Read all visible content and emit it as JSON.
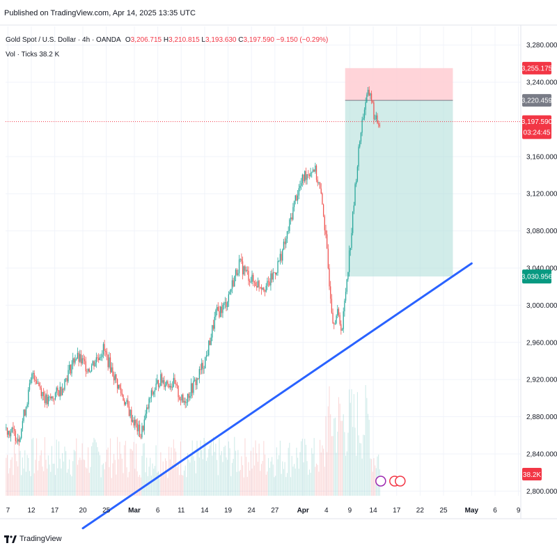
{
  "header": {
    "published": "Published on TradingView.com, Apr 14, 2025 13:35 UTC"
  },
  "legend": {
    "symbol": "Gold Spot / U.S. Dollar · 4h · OANDA",
    "o_label": "O",
    "o": "3,206.715",
    "h_label": "H",
    "h": "3,210.815",
    "l_label": "L",
    "l": "3,193.630",
    "c_label": "C",
    "c": "3,197.590",
    "change": "−9.150 (−0.29%)",
    "vol_label": "Vol · Ticks",
    "vol_value": "38.2 K"
  },
  "footer": {
    "brand": "TradingView"
  },
  "colors": {
    "up": "#26a69a",
    "down": "#ef5350",
    "trendline": "#2962ff",
    "target_zone": "#b2dfdb",
    "stop_zone": "#ffcdd2",
    "price_tag": "#f23645",
    "entry_tag": "#787b86",
    "target_tag": "#089981"
  },
  "chart_data": {
    "type": "candlestick",
    "instrument": "Gold Spot / U.S. Dollar",
    "timeframe": "4h",
    "y_axis": {
      "ticks": [
        "2,800.000",
        "2,840.000",
        "2,880.000",
        "2,920.000",
        "2,960.000",
        "3,000.000",
        "3,040.000",
        "3,080.000",
        "3,120.000",
        "3,160.000",
        "3,240.000",
        "3,280.000"
      ],
      "tick_values": [
        2800,
        2840,
        2880,
        2920,
        2960,
        3000,
        3040,
        3080,
        3120,
        3160,
        3240,
        3280
      ],
      "range": [
        2795,
        3300
      ]
    },
    "x_axis": {
      "ticks": [
        "7",
        "12",
        "17",
        "20",
        "25",
        "Mar",
        "6",
        "11",
        "14",
        "19",
        "24",
        "27",
        "Apr",
        "4",
        "9",
        "14",
        "17",
        "22",
        "25",
        "May",
        "6",
        "9"
      ],
      "tick_bold": [
        false,
        false,
        false,
        false,
        false,
        true,
        false,
        false,
        false,
        false,
        false,
        false,
        true,
        false,
        false,
        false,
        false,
        false,
        false,
        true,
        false,
        false
      ],
      "tick_index": [
        0,
        5,
        10,
        16,
        21,
        27,
        32,
        37,
        42,
        47,
        52,
        57,
        63,
        68,
        73,
        78,
        83,
        88,
        93,
        99,
        104,
        109
      ]
    },
    "price_path": [
      {
        "i": 0,
        "p": 2868
      },
      {
        "i": 3,
        "p": 2858
      },
      {
        "i": 6,
        "p": 2928
      },
      {
        "i": 9,
        "p": 2895
      },
      {
        "i": 12,
        "p": 2910
      },
      {
        "i": 15,
        "p": 2945
      },
      {
        "i": 18,
        "p": 2932
      },
      {
        "i": 21,
        "p": 2953
      },
      {
        "i": 24,
        "p": 2915
      },
      {
        "i": 27,
        "p": 2880
      },
      {
        "i": 29,
        "p": 2860
      },
      {
        "i": 31,
        "p": 2900
      },
      {
        "i": 33,
        "p": 2920
      },
      {
        "i": 36,
        "p": 2915
      },
      {
        "i": 38,
        "p": 2895
      },
      {
        "i": 41,
        "p": 2920
      },
      {
        "i": 43,
        "p": 2945
      },
      {
        "i": 45,
        "p": 2990
      },
      {
        "i": 47,
        "p": 3000
      },
      {
        "i": 50,
        "p": 3045
      },
      {
        "i": 53,
        "p": 3025
      },
      {
        "i": 56,
        "p": 3020
      },
      {
        "i": 58,
        "p": 3040
      },
      {
        "i": 60,
        "p": 3070
      },
      {
        "i": 62,
        "p": 3115
      },
      {
        "i": 64,
        "p": 3140
      },
      {
        "i": 66,
        "p": 3148
      },
      {
        "i": 67,
        "p": 3130
      },
      {
        "i": 68,
        "p": 3100
      },
      {
        "i": 69,
        "p": 3040
      },
      {
        "i": 70,
        "p": 2985
      },
      {
        "i": 71,
        "p": 2990
      },
      {
        "i": 72,
        "p": 2975
      },
      {
        "i": 73,
        "p": 3030
      },
      {
        "i": 74,
        "p": 3080
      },
      {
        "i": 75,
        "p": 3140
      },
      {
        "i": 76,
        "p": 3190
      },
      {
        "i": 77,
        "p": 3220
      },
      {
        "i": 78,
        "p": 3230
      },
      {
        "i": 79,
        "p": 3197.59
      }
    ],
    "volume_panel": {
      "latest": "38.2K"
    },
    "trendline": {
      "start": {
        "i": 16,
        "p": 2760
      },
      "end": {
        "i": 99,
        "p": 3045
      }
    },
    "position": {
      "type": "long",
      "entry": 3220.459,
      "stop": 3255.175,
      "target": 3030.956,
      "start_i": 72,
      "end_i": 95
    },
    "current_price": 3197.59,
    "labels": {
      "stop_tag": "3,255.175",
      "entry_tag": "3,220.459",
      "price_tag": "3,197.590",
      "countdown": "03:24:45",
      "target_tag": "3,030.956",
      "volume_tag": "38.2K"
    }
  }
}
